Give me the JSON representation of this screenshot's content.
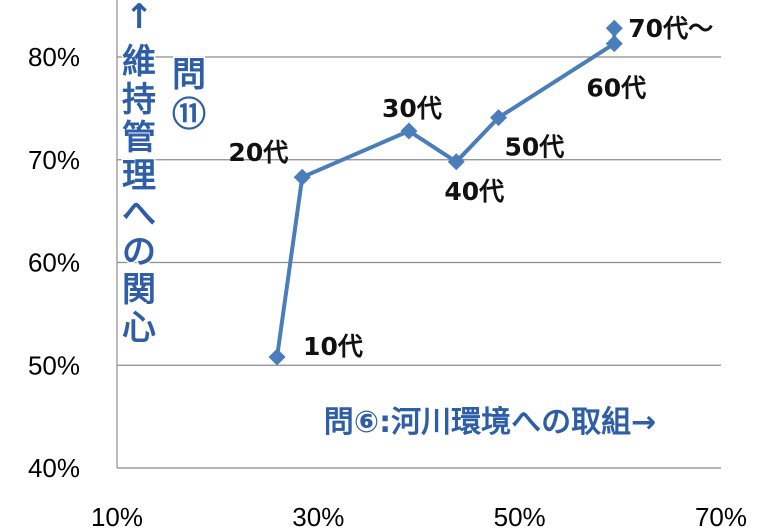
{
  "chart_data": {
    "type": "scatter",
    "title": "",
    "xlabel": "問⑥:河川環境への取組→",
    "ylabel": "↑維持管理への関心",
    "ylabel_aside": "問⑪",
    "xlim": [
      0.1,
      0.7
    ],
    "ylim": [
      0.4,
      0.85
    ],
    "x_ticks": [
      0.1,
      0.3,
      0.5,
      0.7
    ],
    "x_tick_labels": [
      "10%",
      "30%",
      "50%",
      "70%"
    ],
    "y_ticks": [
      0.4,
      0.5,
      0.6,
      0.7,
      0.8
    ],
    "y_tick_labels": [
      "40%",
      "50%",
      "60%",
      "70%",
      "80%"
    ],
    "grid": "horizontal",
    "line_color": "#4a7ebb",
    "points": [
      {
        "label": "10代",
        "x": 0.259,
        "y": 0.508
      },
      {
        "label": "20代",
        "x": 0.284,
        "y": 0.683
      },
      {
        "label": "30代",
        "x": 0.39,
        "y": 0.728
      },
      {
        "label": "40代",
        "x": 0.437,
        "y": 0.698
      },
      {
        "label": "50代",
        "x": 0.479,
        "y": 0.741
      },
      {
        "label": "60代",
        "x": 0.594,
        "y": 0.813
      },
      {
        "label": "70代～",
        "x": 0.594,
        "y": 0.828
      }
    ]
  }
}
